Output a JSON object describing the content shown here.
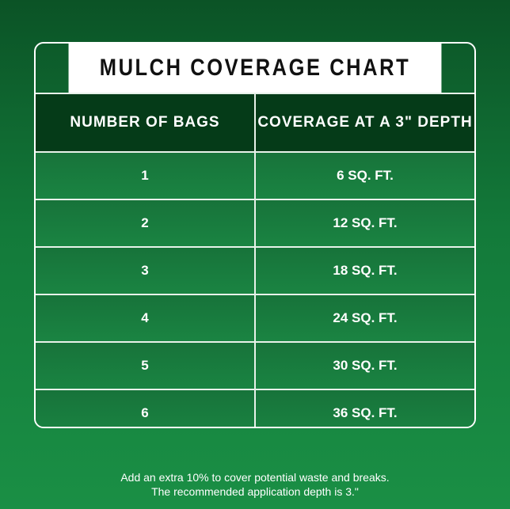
{
  "title": "MULCH COVERAGE CHART",
  "table": {
    "headers": [
      "NUMBER OF BAGS",
      "COVERAGE AT A 3\" DEPTH"
    ],
    "rows": [
      [
        "1",
        "6 SQ. FT."
      ],
      [
        "2",
        "12 SQ. FT."
      ],
      [
        "3",
        "18 SQ. FT."
      ],
      [
        "4",
        "24 SQ. FT."
      ],
      [
        "5",
        "30 SQ. FT."
      ],
      [
        "6",
        "36 SQ. FT."
      ]
    ]
  },
  "footnote": [
    "Add an extra 10% to cover potential waste and breaks.",
    "The recommended application depth is 3.\""
  ]
}
